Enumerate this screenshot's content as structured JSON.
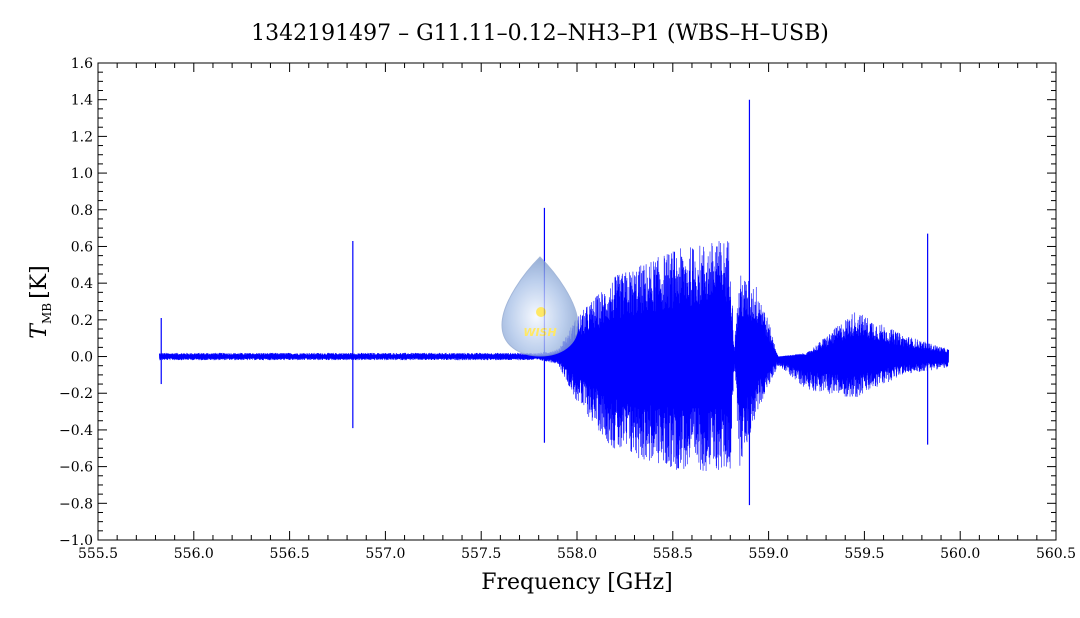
{
  "chart_data": {
    "type": "line",
    "title": "1342191497 – G11.11–0.12–NH3–P1 (WBS–H–USB)",
    "xlabel": "Frequency [GHz]",
    "ylabel_main": "T",
    "ylabel_sub": "MB",
    "ylabel_unit": "[K]",
    "xlim": [
      555.5,
      560.5
    ],
    "ylim": [
      -1.0,
      1.6
    ],
    "x_ticks": [
      "555.5",
      "556.0",
      "556.5",
      "557.0",
      "557.5",
      "558.0",
      "558.5",
      "559.0",
      "559.5",
      "560.0",
      "560.5"
    ],
    "y_ticks": [
      "−1.0",
      "−0.8",
      "−0.6",
      "−0.4",
      "−0.2",
      "0.0",
      "0.2",
      "0.4",
      "0.6",
      "0.8",
      "1.0",
      "1.2",
      "1.4",
      "1.6"
    ],
    "grid": false,
    "line_color": "#0000ff",
    "series": [
      {
        "x_range": [
          555.82,
          559.94
        ],
        "envelope_upper": [
          [
            555.82,
            0.02
          ],
          [
            556.8,
            0.02
          ],
          [
            557.8,
            0.02
          ],
          [
            557.9,
            0.04
          ],
          [
            558.0,
            0.22
          ],
          [
            558.2,
            0.44
          ],
          [
            558.5,
            0.58
          ],
          [
            558.8,
            0.65
          ],
          [
            558.82,
            0.05
          ],
          [
            558.85,
            0.45
          ],
          [
            558.95,
            0.38
          ],
          [
            559.05,
            0.0
          ],
          [
            559.2,
            0.02
          ],
          [
            559.45,
            0.25
          ],
          [
            559.7,
            0.12
          ],
          [
            559.94,
            0.04
          ]
        ],
        "envelope_lower": [
          [
            555.82,
            -0.02
          ],
          [
            556.8,
            -0.02
          ],
          [
            557.8,
            -0.02
          ],
          [
            557.9,
            -0.04
          ],
          [
            558.0,
            -0.25
          ],
          [
            558.2,
            -0.52
          ],
          [
            558.5,
            -0.62
          ],
          [
            558.8,
            -0.63
          ],
          [
            558.82,
            -0.05
          ],
          [
            558.85,
            -0.6
          ],
          [
            558.95,
            -0.28
          ],
          [
            559.05,
            -0.05
          ],
          [
            559.2,
            -0.18
          ],
          [
            559.45,
            -0.23
          ],
          [
            559.7,
            -0.1
          ],
          [
            559.94,
            -0.06
          ]
        ],
        "spikes": [
          {
            "x": 555.83,
            "max": 0.21,
            "min": -0.15
          },
          {
            "x": 556.83,
            "max": 0.63,
            "min": -0.39
          },
          {
            "x": 557.83,
            "max": 0.81,
            "min": -0.47
          },
          {
            "x": 558.73,
            "max": 0.6,
            "min": -0.55
          },
          {
            "x": 558.9,
            "max": 1.4,
            "min": -0.81
          },
          {
            "x": 559.83,
            "max": 0.67,
            "min": -0.48
          }
        ]
      }
    ]
  },
  "logo": {
    "text": "WISH"
  }
}
